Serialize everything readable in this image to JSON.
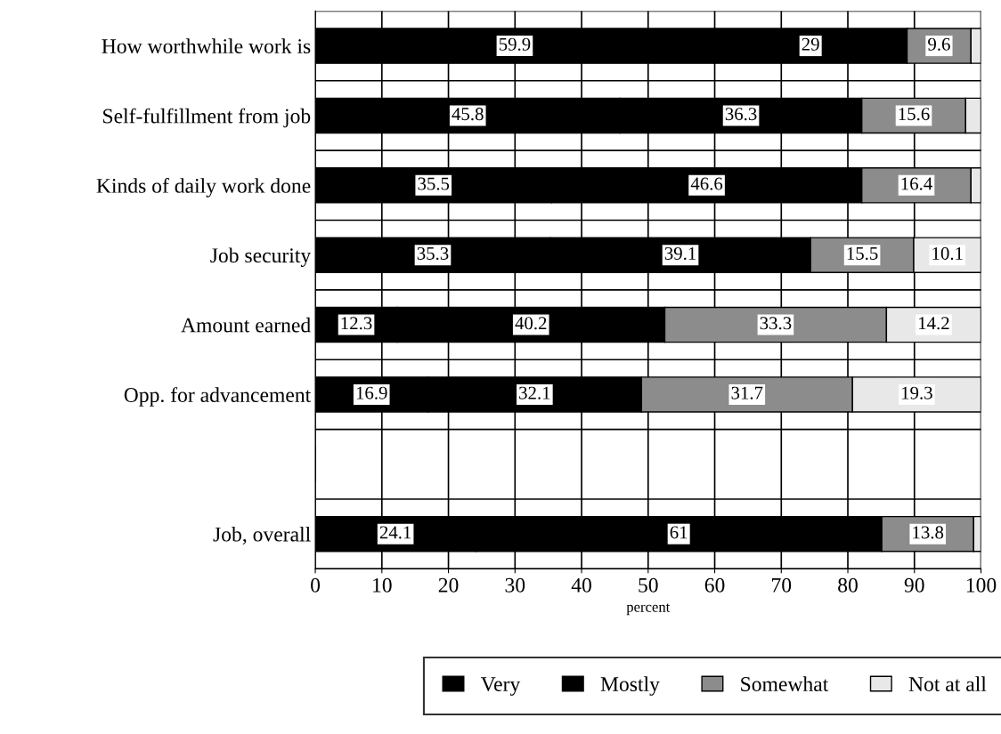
{
  "chart_data": {
    "type": "bar",
    "orientation": "horizontal",
    "stacked": true,
    "categories": [
      "How worthwhile work is",
      "Self-fulfillment from job",
      "Kinds of daily work done",
      "Job security",
      "Amount earned",
      "Opp. for advancement",
      null,
      "Job, overall"
    ],
    "series": [
      {
        "name": "Very",
        "color": "#000000",
        "values": [
          59.9,
          45.8,
          35.5,
          35.3,
          12.3,
          16.9,
          null,
          24.1
        ],
        "value_labels": [
          "59.9",
          "45.8",
          "35.5",
          "35.3",
          "12.3",
          "16.9",
          null,
          "24.1"
        ]
      },
      {
        "name": "Mostly",
        "color": "#000000",
        "values": [
          29,
          36.3,
          46.6,
          39.1,
          40.2,
          32.1,
          null,
          61
        ],
        "value_labels": [
          "29",
          "36.3",
          "46.6",
          "39.1",
          "40.2",
          "32.1",
          null,
          "61"
        ]
      },
      {
        "name": "Somewhat",
        "color": "#8c8c8c",
        "values": [
          9.6,
          15.6,
          16.4,
          15.5,
          33.3,
          31.7,
          null,
          13.8
        ],
        "value_labels": [
          "9.6",
          "15.6",
          "16.4",
          "15.5",
          "33.3",
          "31.7",
          null,
          "13.8"
        ]
      },
      {
        "name": "Not at all",
        "color": "#e8e8e8",
        "values": [
          1.5,
          2.3,
          1.5,
          10.1,
          14.2,
          19.3,
          null,
          1.1
        ],
        "value_labels": [
          null,
          null,
          null,
          "10.1",
          "14.2",
          "19.3",
          null,
          null
        ]
      }
    ],
    "xlabel": "percent",
    "xlim": [
      0,
      100
    ],
    "xticks": [
      0,
      10,
      20,
      30,
      40,
      50,
      60,
      70,
      80,
      90,
      100
    ],
    "grid": "x",
    "legend": "bottom"
  }
}
